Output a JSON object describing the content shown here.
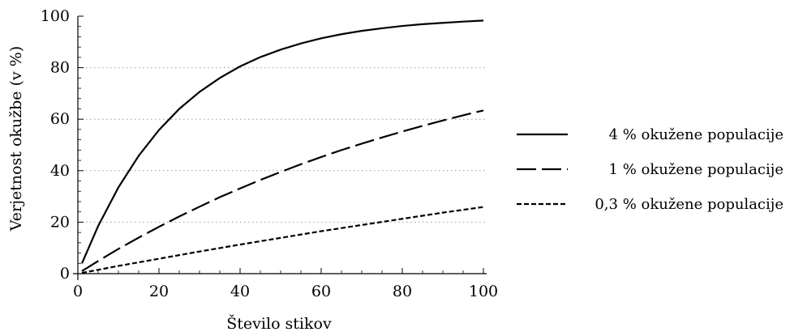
{
  "chart_data": {
    "type": "line",
    "title": "",
    "xlabel": "Število stikov",
    "ylabel": "Verjetnost okužbe (v %)",
    "xlim": [
      0,
      100
    ],
    "ylim": [
      0,
      100
    ],
    "x_ticks": [
      0,
      20,
      40,
      60,
      80,
      100
    ],
    "y_ticks": [
      0,
      20,
      40,
      60,
      80,
      100
    ],
    "x_tick_labels": [
      "0",
      "20",
      "40",
      "60",
      "80",
      "100"
    ],
    "y_tick_labels": [
      "0",
      "20",
      "40",
      "60",
      "80",
      "100"
    ],
    "grid": "horizontal dotted",
    "legend_position": "right",
    "series": [
      {
        "name": "4 % okužene populacije",
        "style": "solid",
        "x": [
          1,
          5,
          10,
          15,
          20,
          25,
          30,
          35,
          40,
          45,
          50,
          55,
          60,
          65,
          70,
          75,
          80,
          85,
          90,
          95,
          100
        ],
        "y": [
          4.0,
          18.5,
          33.5,
          45.8,
          55.8,
          64.0,
          70.6,
          76.0,
          80.5,
          84.1,
          87.0,
          89.4,
          91.4,
          93.0,
          94.3,
          95.3,
          96.2,
          96.9,
          97.4,
          97.9,
          98.3
        ]
      },
      {
        "name": "1 % okužene populacije",
        "style": "long-dash",
        "x": [
          1,
          5,
          10,
          15,
          20,
          25,
          30,
          35,
          40,
          45,
          50,
          55,
          60,
          65,
          70,
          75,
          80,
          85,
          90,
          95,
          100
        ],
        "y": [
          1.0,
          4.9,
          9.6,
          14.0,
          18.2,
          22.2,
          26.0,
          29.7,
          33.1,
          36.4,
          39.5,
          42.5,
          45.3,
          48.0,
          50.5,
          52.9,
          55.2,
          57.4,
          59.5,
          61.5,
          63.4
        ]
      },
      {
        "name": "0,3 % okužene populacije",
        "style": "short-dash",
        "x": [
          1,
          10,
          20,
          30,
          40,
          50,
          60,
          70,
          80,
          90,
          100
        ],
        "y": [
          0.3,
          3.0,
          5.8,
          8.6,
          11.3,
          13.9,
          16.5,
          18.9,
          21.3,
          23.7,
          25.9
        ]
      }
    ]
  }
}
